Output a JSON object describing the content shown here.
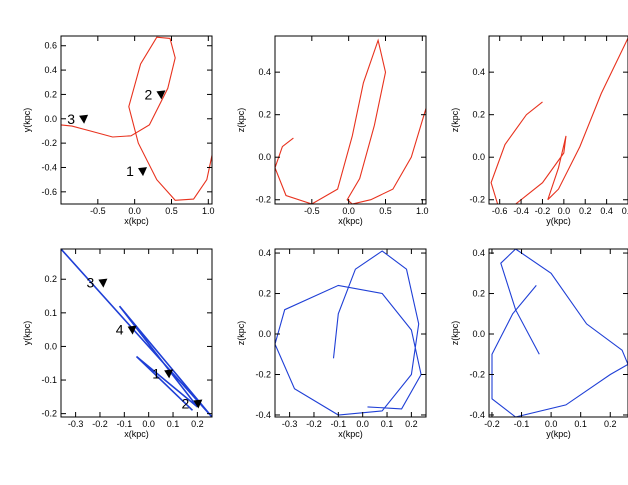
{
  "chart_data": [
    {
      "type": "line",
      "panel": "top-left",
      "xlabel": "x(kpc)",
      "ylabel": "y(kpc)",
      "xlim": [
        -1.0,
        1.05
      ],
      "ylim": [
        -0.7,
        0.68
      ],
      "xticks": [
        -0.5,
        0.0,
        0.5,
        1.0
      ],
      "xtick_labels": [
        "-0.5",
        "0.0",
        "0.5",
        "1.0"
      ],
      "yticks": [
        -0.6,
        -0.4,
        -0.2,
        0.0,
        0.2,
        0.4,
        0.6
      ],
      "ytick_labels": [
        "-0.6",
        "-0.4",
        "-0.2",
        "0.0",
        "0.2",
        "0.4",
        "0.6"
      ],
      "color": "#e8321e",
      "series": [
        {
          "x": [
            -1.0,
            -0.85,
            -0.6,
            -0.3,
            -0.05,
            0.2,
            0.45,
            0.55,
            0.48,
            0.3,
            0.08,
            -0.08,
            0.05,
            0.3,
            0.55,
            0.8,
            0.98,
            1.05
          ],
          "y": [
            -0.05,
            -0.06,
            -0.1,
            -0.15,
            -0.14,
            -0.05,
            0.25,
            0.5,
            0.66,
            0.67,
            0.45,
            0.1,
            -0.2,
            -0.5,
            -0.67,
            -0.66,
            -0.5,
            -0.3
          ]
        }
      ],
      "arrows": [
        {
          "label": "1",
          "x": 0.1,
          "y": -0.43
        },
        {
          "label": "2",
          "x": 0.35,
          "y": 0.2
        },
        {
          "label": "3",
          "x": -0.7,
          "y": 0.0
        }
      ],
      "grid": false
    },
    {
      "type": "line",
      "panel": "top-middle",
      "xlabel": "x(kpc)",
      "ylabel": "z(kpc)",
      "xlim": [
        -1.0,
        1.05
      ],
      "ylim": [
        -0.22,
        0.57
      ],
      "xticks": [
        -0.5,
        0.0,
        0.5,
        1.0
      ],
      "xtick_labels": [
        "-0.5",
        "0.0",
        "0.5",
        "1.0"
      ],
      "yticks": [
        -0.2,
        0.0,
        0.2,
        0.4
      ],
      "ytick_labels": [
        "-0.2",
        "0.0",
        "0.2",
        "0.4"
      ],
      "color": "#e8321e",
      "series": [
        {
          "x": [
            -0.75,
            -0.9,
            -1.0,
            -0.85,
            -0.5,
            -0.15,
            0.05,
            0.2,
            0.4,
            0.5,
            0.35,
            0.15,
            -0.02,
            0.05,
            0.3,
            0.6,
            0.85,
            1.05
          ],
          "y": [
            0.09,
            0.05,
            -0.05,
            -0.18,
            -0.22,
            -0.15,
            0.1,
            0.35,
            0.55,
            0.4,
            0.15,
            -0.1,
            -0.2,
            -0.22,
            -0.2,
            -0.15,
            0.0,
            0.23
          ]
        }
      ],
      "grid": false
    },
    {
      "type": "line",
      "panel": "top-right",
      "xlabel": "y(kpc)",
      "ylabel": "z(kpc)",
      "xlim": [
        -0.7,
        0.6
      ],
      "ylim": [
        -0.22,
        0.57
      ],
      "xticks": [
        -0.6,
        -0.4,
        -0.2,
        0.0,
        0.2,
        0.4,
        0.6
      ],
      "xtick_labels": [
        "-0.6",
        "-0.4",
        "-0.2",
        "0.0",
        "0.2",
        "0.4",
        "0.6"
      ],
      "yticks": [
        -0.2,
        0.0,
        0.2,
        0.4
      ],
      "ytick_labels": [
        "-0.2",
        "0.0",
        "0.2",
        "0.4"
      ],
      "color": "#e8321e",
      "series": [
        {
          "x": [
            -0.2,
            -0.35,
            -0.55,
            -0.68,
            -0.62,
            -0.45,
            -0.2,
            0.0,
            0.02,
            -0.05,
            -0.15,
            -0.05,
            0.15,
            0.35,
            0.6
          ],
          "y": [
            0.26,
            0.2,
            0.06,
            -0.12,
            -0.22,
            -0.22,
            -0.12,
            0.02,
            0.1,
            -0.05,
            -0.2,
            -0.15,
            0.05,
            0.3,
            0.56
          ]
        }
      ],
      "grid": false
    },
    {
      "type": "line",
      "panel": "bottom-left",
      "xlabel": "x(kpc)",
      "ylabel": "y(kpc)",
      "xlim": [
        -0.36,
        0.26
      ],
      "ylim": [
        -0.21,
        0.29
      ],
      "xticks": [
        -0.3,
        -0.2,
        -0.1,
        0.0,
        0.1,
        0.2
      ],
      "xtick_labels": [
        "-0.3",
        "-0.2",
        "-0.1",
        "0.0",
        "0.1",
        "0.2"
      ],
      "yticks": [
        -0.2,
        -0.1,
        0.0,
        0.1,
        0.2
      ],
      "ytick_labels": [
        "-0.2",
        "-0.1",
        "0.0",
        "0.1",
        "0.2"
      ],
      "color": "#1f3fd6",
      "series": [
        {
          "x": [
            -0.36,
            0.26,
            -0.12,
            0.2,
            -0.05,
            0.18
          ],
          "y": [
            0.29,
            -0.21,
            0.12,
            -0.18,
            -0.03,
            -0.19
          ]
        }
      ],
      "arrows": [
        {
          "label": "1",
          "x": 0.08,
          "y": -0.08
        },
        {
          "label": "2",
          "x": 0.2,
          "y": -0.17
        },
        {
          "label": "3",
          "x": -0.19,
          "y": 0.19
        },
        {
          "label": "4",
          "x": -0.07,
          "y": 0.05
        }
      ],
      "grid": false
    },
    {
      "type": "line",
      "panel": "bottom-middle",
      "xlabel": "x(kpc)",
      "ylabel": "z(kpc)",
      "xlim": [
        -0.36,
        0.26
      ],
      "ylim": [
        -0.41,
        0.42
      ],
      "xticks": [
        -0.3,
        -0.2,
        -0.1,
        0.0,
        0.1,
        0.2
      ],
      "xtick_labels": [
        "-0.3",
        "-0.2",
        "-0.1",
        "0.0",
        "0.1",
        "0.2"
      ],
      "yticks": [
        -0.4,
        -0.2,
        0.0,
        0.2,
        0.4
      ],
      "ytick_labels": [
        "-0.4",
        "-0.2",
        "0.0",
        "0.2",
        "0.4"
      ],
      "color": "#1f3fd6",
      "series": [
        {
          "x": [
            -0.12,
            -0.1,
            -0.03,
            0.08,
            0.18,
            0.23,
            0.2,
            0.08,
            -0.1,
            -0.28,
            -0.36,
            -0.32,
            -0.1,
            0.08,
            0.2,
            0.24,
            0.16,
            0.02
          ],
          "y": [
            -0.12,
            0.1,
            0.32,
            0.41,
            0.32,
            0.05,
            -0.2,
            -0.38,
            -0.4,
            -0.27,
            -0.05,
            0.12,
            0.24,
            0.2,
            0.02,
            -0.2,
            -0.37,
            -0.36
          ]
        }
      ],
      "grid": false
    },
    {
      "type": "line",
      "panel": "bottom-right",
      "xlabel": "y(kpc)",
      "ylabel": "z(kpc)",
      "xlim": [
        -0.21,
        0.26
      ],
      "ylim": [
        -0.41,
        0.42
      ],
      "xticks": [
        -0.2,
        -0.1,
        0.0,
        0.1,
        0.2
      ],
      "xtick_labels": [
        "-0.2",
        "-0.1",
        "0.0",
        "0.1",
        "0.2"
      ],
      "yticks": [
        -0.4,
        -0.2,
        0.0,
        0.2,
        0.4
      ],
      "ytick_labels": [
        "-0.4",
        "-0.2",
        "0.0",
        "0.2",
        "0.4"
      ],
      "color": "#1f3fd6",
      "series": [
        {
          "x": [
            -0.04,
            -0.12,
            -0.17,
            -0.12,
            0.0,
            0.12,
            0.24,
            0.26,
            0.2,
            0.05,
            -0.12,
            -0.2,
            -0.2,
            -0.13,
            -0.05
          ],
          "y": [
            -0.1,
            0.12,
            0.35,
            0.42,
            0.3,
            0.05,
            -0.08,
            -0.15,
            -0.2,
            -0.35,
            -0.41,
            -0.32,
            -0.1,
            0.1,
            0.24
          ]
        }
      ],
      "grid": false
    }
  ]
}
